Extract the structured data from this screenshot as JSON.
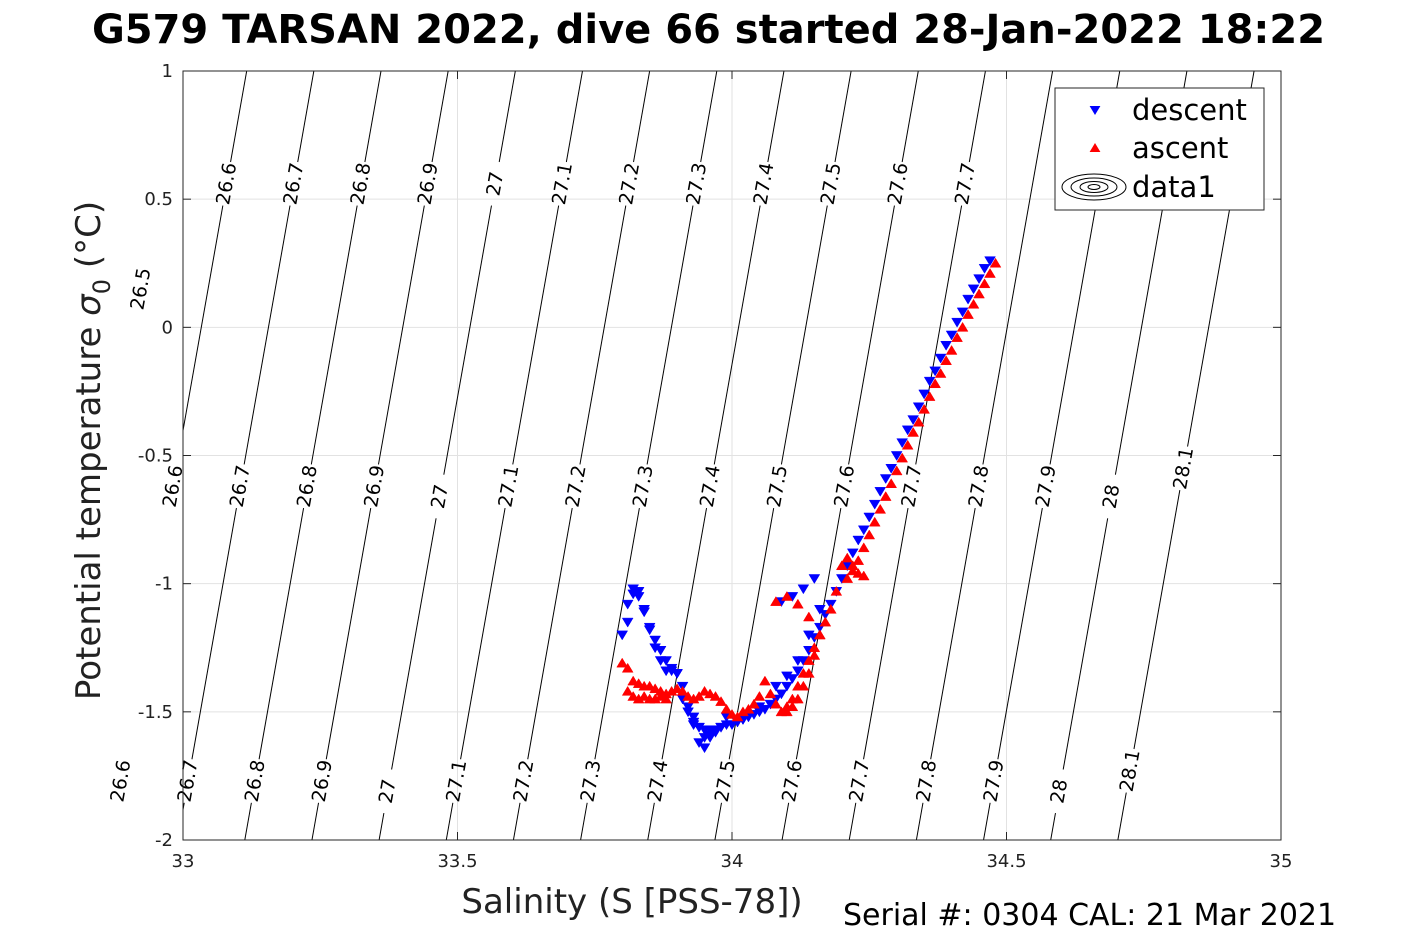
{
  "page": {
    "title": "G579 TARSAN 2022, dive 66 started 28-Jan-2022 18:22",
    "footer": "Serial #: 0304  CAL: 21 Mar 2021"
  },
  "chart_data": {
    "type": "scatter",
    "xlabel": "Salinity (S [PSS-78])",
    "ylabel_main": "Potential temperature ",
    "ylabel_symbol": "σ",
    "ylabel_subscript": "0",
    "ylabel_unit": " (°C)",
    "xlim": [
      33,
      35
    ],
    "ylim": [
      -2,
      1
    ],
    "xticks": [
      33,
      33.5,
      34,
      34.5,
      35
    ],
    "xtick_labels": [
      "33",
      "33.5",
      "34",
      "34.5",
      "35"
    ],
    "yticks": [
      -2,
      -1.5,
      -1,
      -0.5,
      0,
      0.5,
      1
    ],
    "ytick_labels": [
      "-2",
      "-1.5",
      "-1",
      "-0.5",
      "0",
      "0.5",
      "1"
    ],
    "grid": true,
    "legend_position": "top-right",
    "legend": [
      "descent",
      "ascent",
      "data1"
    ],
    "contours": {
      "levels": [
        26.5,
        26.6,
        26.7,
        26.8,
        26.9,
        27,
        27.1,
        27.2,
        27.3,
        27.4,
        27.5,
        27.6,
        27.7,
        27.8,
        27.9,
        28,
        28.1
      ],
      "labels": [
        "26.5",
        "26.6",
        "26.7",
        "26.8",
        "26.9",
        "27",
        "27.1",
        "27.2",
        "27.3",
        "27.4",
        "27.5",
        "27.6",
        "27.7",
        "27.8",
        "27.9",
        "28",
        "28.1"
      ],
      "top_labels": [
        {
          "level": 26.5,
          "y": 0.15,
          "text": "26.5"
        },
        {
          "level": 26.6,
          "y": 0.56,
          "text": "26.6"
        },
        {
          "level": 26.7,
          "y": 0.56,
          "text": "26.7"
        },
        {
          "level": 26.8,
          "y": 0.56,
          "text": "26.8"
        },
        {
          "level": 26.9,
          "y": 0.56,
          "text": "26.9"
        },
        {
          "level": 27,
          "y": 0.56,
          "text": "27"
        },
        {
          "level": 27.1,
          "y": 0.56,
          "text": "27.1"
        },
        {
          "level": 27.2,
          "y": 0.56,
          "text": "27.2"
        },
        {
          "level": 27.3,
          "y": 0.56,
          "text": "27.3"
        },
        {
          "level": 27.4,
          "y": 0.56,
          "text": "27.4"
        },
        {
          "level": 27.5,
          "y": 0.56,
          "text": "27.5"
        },
        {
          "level": 27.6,
          "y": 0.56,
          "text": "27.6"
        },
        {
          "level": 27.7,
          "y": 0.56,
          "text": "27.7"
        }
      ],
      "mid_labels": [
        {
          "level": 26.6,
          "y": -0.62,
          "text": "26.6"
        },
        {
          "level": 26.7,
          "y": -0.62,
          "text": "26.7"
        },
        {
          "level": 26.8,
          "y": -0.62,
          "text": "26.8"
        },
        {
          "level": 26.9,
          "y": -0.62,
          "text": "26.9"
        },
        {
          "level": 27,
          "y": -0.66,
          "text": "27"
        },
        {
          "level": 27.1,
          "y": -0.62,
          "text": "27.1"
        },
        {
          "level": 27.2,
          "y": -0.62,
          "text": "27.2"
        },
        {
          "level": 27.3,
          "y": -0.62,
          "text": "27.3"
        },
        {
          "level": 27.4,
          "y": -0.62,
          "text": "27.4"
        },
        {
          "level": 27.5,
          "y": -0.62,
          "text": "27.5"
        },
        {
          "level": 27.6,
          "y": -0.62,
          "text": "27.6"
        },
        {
          "level": 27.7,
          "y": -0.62,
          "text": "27.7"
        },
        {
          "level": 27.8,
          "y": -0.62,
          "text": "27.8"
        },
        {
          "level": 27.9,
          "y": -0.62,
          "text": "27.9"
        },
        {
          "level": 28,
          "y": -0.66,
          "text": "28"
        },
        {
          "level": 28.1,
          "y": -0.55,
          "text": "28.1"
        }
      ],
      "bottom_labels": [
        {
          "level": 26.6,
          "y": -1.77,
          "text": "26.6"
        },
        {
          "level": 26.7,
          "y": -1.77,
          "text": "26.7"
        },
        {
          "level": 26.8,
          "y": -1.77,
          "text": "26.8"
        },
        {
          "level": 26.9,
          "y": -1.77,
          "text": "26.9"
        },
        {
          "level": 27,
          "y": -1.81,
          "text": "27"
        },
        {
          "level": 27.1,
          "y": -1.77,
          "text": "27.1"
        },
        {
          "level": 27.2,
          "y": -1.77,
          "text": "27.2"
        },
        {
          "level": 27.3,
          "y": -1.77,
          "text": "27.3"
        },
        {
          "level": 27.4,
          "y": -1.77,
          "text": "27.4"
        },
        {
          "level": 27.5,
          "y": -1.77,
          "text": "27.5"
        },
        {
          "level": 27.6,
          "y": -1.77,
          "text": "27.6"
        },
        {
          "level": 27.7,
          "y": -1.77,
          "text": "27.7"
        },
        {
          "level": 27.8,
          "y": -1.77,
          "text": "27.8"
        },
        {
          "level": 27.9,
          "y": -1.77,
          "text": "27.9"
        },
        {
          "level": 28,
          "y": -1.81,
          "text": "28"
        },
        {
          "level": 28.1,
          "y": -1.73,
          "text": "28.1"
        }
      ]
    },
    "series": [
      {
        "name": "descent",
        "color": "#0000ff",
        "marker": "triangle-down",
        "x": [
          34.47,
          34.46,
          34.45,
          34.44,
          34.43,
          34.42,
          34.41,
          34.4,
          34.39,
          34.38,
          34.37,
          34.36,
          34.35,
          34.34,
          34.33,
          34.32,
          34.31,
          34.3,
          34.29,
          34.28,
          34.27,
          34.26,
          34.25,
          34.24,
          34.23,
          34.22,
          34.21,
          34.2,
          34.19,
          34.18,
          34.17,
          34.16,
          34.15,
          34.14,
          34.13,
          34.12,
          34.11,
          34.1,
          34.09,
          34.08,
          34.07,
          34.06,
          34.05,
          34.04,
          34.03,
          34.02,
          34.01,
          34.0,
          33.99,
          33.98,
          33.97,
          33.96,
          33.95,
          33.94,
          33.93,
          33.92,
          33.91,
          33.9,
          33.89,
          33.88,
          33.87,
          33.86,
          33.85,
          33.84,
          33.83,
          33.82,
          33.81,
          33.8,
          33.81,
          33.82,
          33.83,
          33.84,
          33.85,
          33.86,
          33.87,
          33.88,
          33.89,
          33.9,
          33.91,
          33.92,
          33.93,
          33.94,
          33.95,
          33.96,
          33.97,
          33.98,
          33.99,
          33.93,
          33.94,
          33.95,
          33.96,
          34.02,
          34.05,
          34.08,
          34.1,
          34.12,
          34.14,
          34.16,
          34.09,
          34.11,
          34.13,
          34.15
        ],
        "y": [
          0.26,
          0.23,
          0.19,
          0.15,
          0.11,
          0.06,
          0.02,
          -0.03,
          -0.07,
          -0.12,
          -0.17,
          -0.21,
          -0.26,
          -0.31,
          -0.36,
          -0.4,
          -0.45,
          -0.5,
          -0.55,
          -0.59,
          -0.64,
          -0.69,
          -0.74,
          -0.79,
          -0.83,
          -0.88,
          -0.93,
          -0.98,
          -1.03,
          -1.08,
          -1.12,
          -1.17,
          -1.21,
          -1.26,
          -1.3,
          -1.34,
          -1.37,
          -1.4,
          -1.43,
          -1.45,
          -1.47,
          -1.49,
          -1.5,
          -1.51,
          -1.52,
          -1.53,
          -1.54,
          -1.55,
          -1.55,
          -1.56,
          -1.57,
          -1.57,
          -1.57,
          -1.56,
          -1.54,
          -1.5,
          -1.45,
          -1.35,
          -1.33,
          -1.3,
          -1.26,
          -1.22,
          -1.17,
          -1.11,
          -1.05,
          -1.02,
          -1.15,
          -1.2,
          -1.08,
          -1.04,
          -1.03,
          -1.1,
          -1.18,
          -1.25,
          -1.3,
          -1.34,
          -1.34,
          -1.35,
          -1.4,
          -1.48,
          -1.55,
          -1.62,
          -1.64,
          -1.6,
          -1.58,
          -1.56,
          -1.52,
          -1.52,
          -1.56,
          -1.6,
          -1.59,
          -1.53,
          -1.48,
          -1.4,
          -1.36,
          -1.3,
          -1.2,
          -1.1,
          -1.07,
          -1.05,
          -1.02,
          -0.98
        ]
      },
      {
        "name": "ascent",
        "color": "#ff0000",
        "marker": "triangle-up",
        "x": [
          34.48,
          34.47,
          34.46,
          34.45,
          34.44,
          34.43,
          34.42,
          34.41,
          34.4,
          34.39,
          34.38,
          34.37,
          34.36,
          34.35,
          34.34,
          34.33,
          34.32,
          34.31,
          34.3,
          34.29,
          34.28,
          34.27,
          34.26,
          34.25,
          34.24,
          34.23,
          34.22,
          34.21,
          34.2,
          34.21,
          34.22,
          34.23,
          34.24,
          34.19,
          34.18,
          34.17,
          34.16,
          34.15,
          34.14,
          34.13,
          34.12,
          34.11,
          34.1,
          34.09,
          34.08,
          34.07,
          34.06,
          34.05,
          34.04,
          34.03,
          34.02,
          34.01,
          34.0,
          33.99,
          33.98,
          33.97,
          33.96,
          33.95,
          33.94,
          33.93,
          33.92,
          33.91,
          33.9,
          33.89,
          33.88,
          33.87,
          33.86,
          33.85,
          33.84,
          33.83,
          33.82,
          33.81,
          33.8,
          33.81,
          33.82,
          33.83,
          33.84,
          33.85,
          33.86,
          33.87,
          33.88,
          34.1,
          34.11,
          34.12,
          34.13,
          34.14,
          34.15,
          34.16,
          34.14,
          34.12,
          34.1,
          34.08
        ],
        "y": [
          0.25,
          0.21,
          0.17,
          0.13,
          0.09,
          0.05,
          0.0,
          -0.04,
          -0.09,
          -0.13,
          -0.18,
          -0.22,
          -0.27,
          -0.32,
          -0.37,
          -0.41,
          -0.46,
          -0.51,
          -0.56,
          -0.61,
          -0.66,
          -0.71,
          -0.76,
          -0.81,
          -0.86,
          -0.91,
          -0.95,
          -0.98,
          -0.93,
          -0.9,
          -0.93,
          -0.96,
          -0.97,
          -1.03,
          -1.1,
          -1.15,
          -1.2,
          -1.25,
          -1.3,
          -1.35,
          -1.4,
          -1.45,
          -1.48,
          -1.5,
          -1.47,
          -1.43,
          -1.38,
          -1.44,
          -1.47,
          -1.49,
          -1.5,
          -1.52,
          -1.51,
          -1.49,
          -1.46,
          -1.44,
          -1.43,
          -1.42,
          -1.44,
          -1.45,
          -1.44,
          -1.42,
          -1.41,
          -1.42,
          -1.43,
          -1.42,
          -1.41,
          -1.4,
          -1.4,
          -1.39,
          -1.38,
          -1.33,
          -1.31,
          -1.42,
          -1.44,
          -1.45,
          -1.44,
          -1.45,
          -1.45,
          -1.44,
          -1.45,
          -1.5,
          -1.48,
          -1.45,
          -1.4,
          -1.35,
          -1.28,
          -1.2,
          -1.13,
          -1.08,
          -1.05,
          -1.07
        ]
      }
    ]
  }
}
